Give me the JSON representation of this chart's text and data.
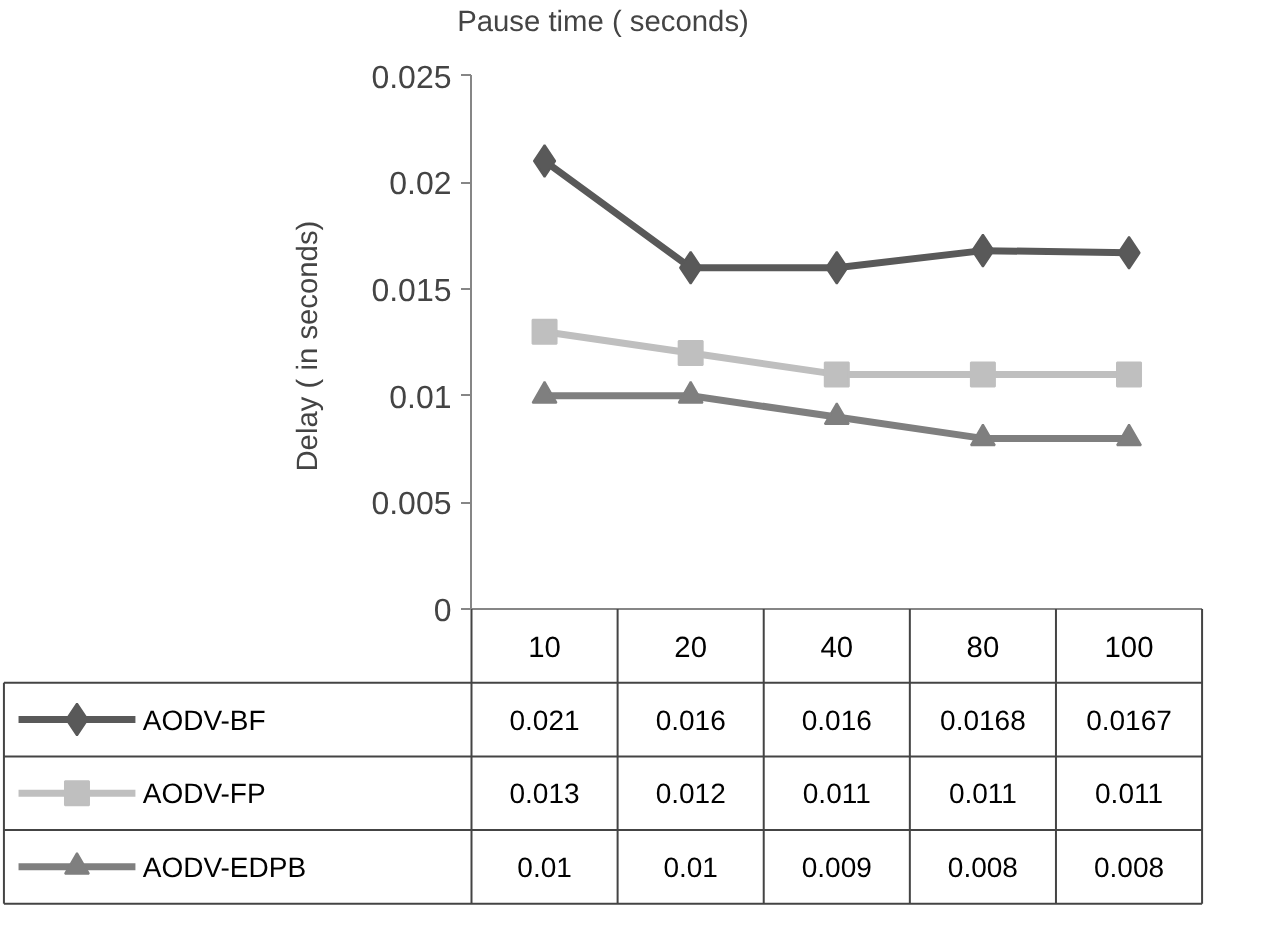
{
  "chart_data": {
    "type": "line",
    "xlabel": "Pause time ( seconds)",
    "ylabel": "Delay  ( in seconds)",
    "categories": [
      "10",
      "20",
      "40",
      "80",
      "100"
    ],
    "ylim": [
      0,
      0.025
    ],
    "yticks": [
      0,
      0.005,
      0.01,
      0.015,
      0.02,
      0.025
    ],
    "grid": false,
    "legend": "bottom",
    "data_labels": true,
    "series": [
      {
        "name": "AODV-BF",
        "color": "#595959",
        "marker": "diamond",
        "values": [
          0.021,
          0.016,
          0.016,
          0.0168,
          0.0167
        ]
      },
      {
        "name": "AODV-FP",
        "color": "#bfbfbf",
        "marker": "square",
        "values": [
          0.013,
          0.012,
          0.011,
          0.011,
          0.011
        ]
      },
      {
        "name": "AODV-EDPB",
        "color": "#7f7f7f",
        "marker": "triangle",
        "values": [
          0.01,
          0.01,
          0.009,
          0.008,
          0.008
        ]
      }
    ]
  }
}
